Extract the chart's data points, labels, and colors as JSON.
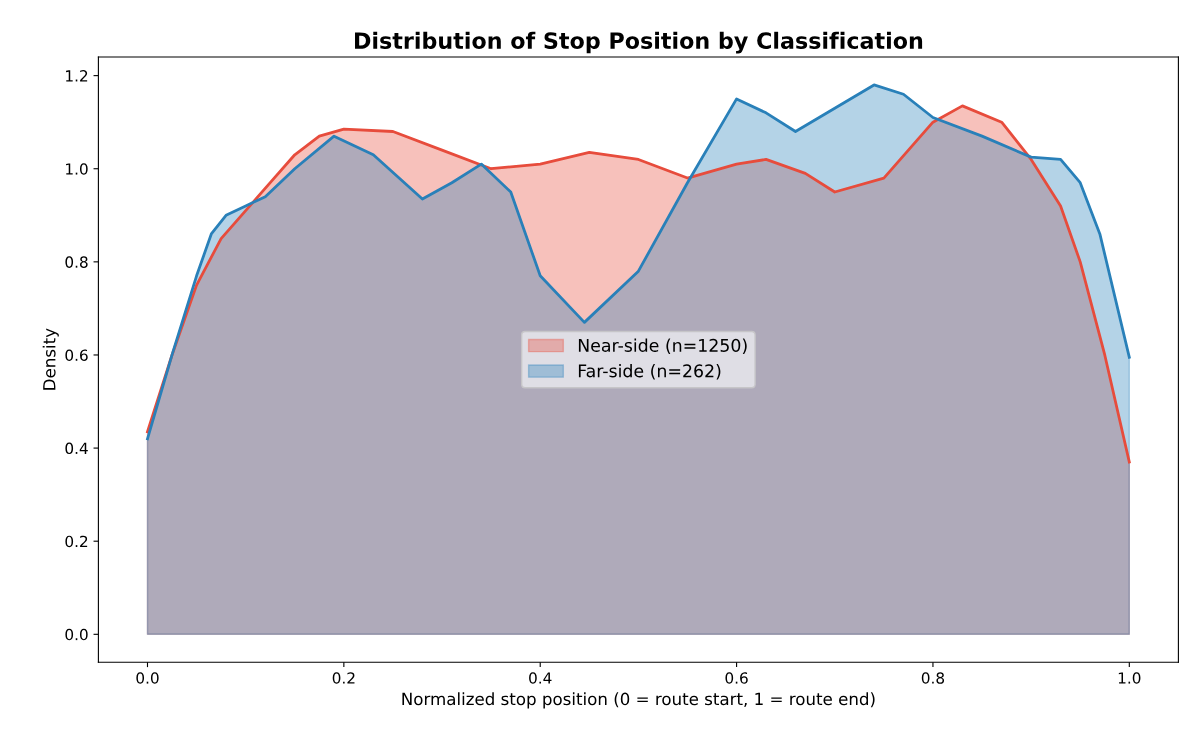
{
  "chart_data": {
    "type": "area",
    "title": "Distribution of Stop Position by Classification",
    "xlabel": "Normalized stop position (0 = route start, 1 = route end)",
    "ylabel": "Density",
    "series": [
      {
        "name": "Near-side (n=1250)",
        "color": "#e74c3c",
        "x": [
          0,
          0.025,
          0.05,
          0.075,
          0.1,
          0.125,
          0.15,
          0.175,
          0.2,
          0.25,
          0.3,
          0.35,
          0.4,
          0.45,
          0.5,
          0.55,
          0.6,
          0.63,
          0.67,
          0.7,
          0.75,
          0.8,
          0.83,
          0.87,
          0.9,
          0.93,
          0.95,
          0.975,
          1.0
        ],
        "values": [
          0.435,
          0.6,
          0.75,
          0.85,
          0.91,
          0.97,
          1.03,
          1.07,
          1.085,
          1.08,
          1.04,
          1.0,
          1.01,
          1.035,
          1.02,
          0.98,
          1.01,
          1.02,
          0.99,
          0.95,
          0.98,
          1.1,
          1.135,
          1.1,
          1.02,
          0.92,
          0.8,
          0.6,
          0.37
        ]
      },
      {
        "name": "Far-side (n=262)",
        "color": "#2980b9",
        "x": [
          0,
          0.025,
          0.05,
          0.065,
          0.08,
          0.1,
          0.12,
          0.15,
          0.19,
          0.23,
          0.28,
          0.31,
          0.34,
          0.37,
          0.4,
          0.445,
          0.5,
          0.55,
          0.6,
          0.63,
          0.66,
          0.7,
          0.74,
          0.77,
          0.8,
          0.85,
          0.9,
          0.93,
          0.95,
          0.97,
          1.0
        ],
        "values": [
          0.42,
          0.6,
          0.77,
          0.86,
          0.9,
          0.92,
          0.94,
          1.0,
          1.07,
          1.03,
          0.935,
          0.97,
          1.01,
          0.95,
          0.77,
          0.67,
          0.78,
          0.97,
          1.15,
          1.12,
          1.08,
          1.13,
          1.18,
          1.16,
          1.11,
          1.07,
          1.025,
          1.02,
          0.97,
          0.86,
          0.595
        ]
      }
    ],
    "xlim": [
      -0.05,
      1.05
    ],
    "xticks": [
      {
        "value": 0,
        "label": "0.0"
      },
      0.2,
      0.4,
      0.6,
      0.8,
      {
        "value": 1,
        "label": "1.0"
      }
    ],
    "ylim": [
      -0.06,
      1.24
    ],
    "yticks": [
      {
        "value": 0,
        "label": "0.0"
      },
      0.2,
      0.4,
      0.6,
      0.8,
      {
        "value": 1,
        "label": "1.0"
      },
      1.2
    ],
    "legend": "center",
    "grid": false
  }
}
